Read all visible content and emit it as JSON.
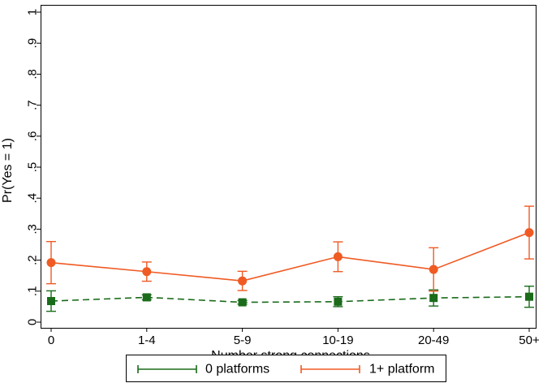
{
  "chart_data": {
    "type": "line",
    "title": "",
    "xlabel": "Number strong connections",
    "ylabel": "Pr(Yes = 1)",
    "categories": [
      "0",
      "1-4",
      "5-9",
      "10-19",
      "20-49",
      "50+"
    ],
    "ylim": [
      0,
      1
    ],
    "yticks": [
      0,
      0.1,
      0.2,
      0.3,
      0.4,
      0.5,
      0.6,
      0.7,
      0.8,
      0.9,
      1
    ],
    "ytick_labels": [
      "0",
      ".1",
      ".2",
      ".3",
      ".4",
      ".5",
      ".6",
      ".7",
      ".8",
      ".9",
      "1"
    ],
    "grid": false,
    "legend_position": "bottom",
    "series": [
      {
        "name": "0 platforms",
        "color": "#1a6b1a",
        "marker": "square",
        "line_style": "dashed",
        "values": [
          0.068,
          0.08,
          0.064,
          0.066,
          0.078,
          0.082
        ],
        "ci_low": [
          0.035,
          0.072,
          0.058,
          0.05,
          0.052,
          0.048
        ],
        "ci_high": [
          0.101,
          0.088,
          0.07,
          0.082,
          0.104,
          0.116
        ]
      },
      {
        "name": "1+ platform",
        "color": "#f05a23",
        "marker": "circle",
        "line_style": "solid",
        "values": [
          0.192,
          0.163,
          0.133,
          0.211,
          0.17,
          0.289
        ],
        "ci_low": [
          0.124,
          0.132,
          0.102,
          0.163,
          0.1,
          0.204
        ],
        "ci_high": [
          0.26,
          0.194,
          0.164,
          0.259,
          0.24,
          0.374
        ]
      }
    ]
  }
}
